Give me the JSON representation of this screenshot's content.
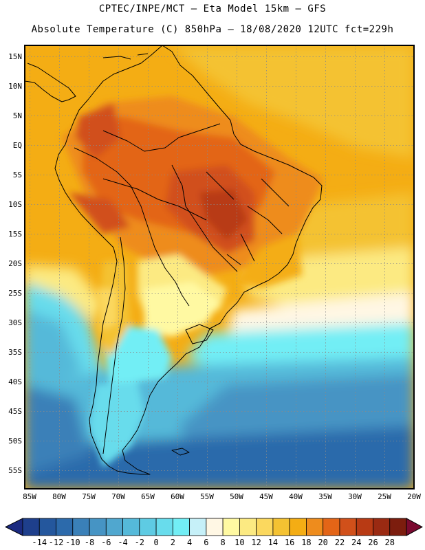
{
  "titles": {
    "line1": "CPTEC/INPE/MCT –  Eta Model 15km – GFS",
    "line2": "Absolute Temperature (C) 850hPa – 18/08/2020 12UTC fct=229h"
  },
  "map": {
    "variable": "Absolute Temperature (C)",
    "level": "850hPa",
    "model": "Eta Model 15km",
    "driver": "GFS",
    "date": "18/08/2020",
    "cycle": "12UTC",
    "forecast": "229h",
    "lon_range": [
      -85,
      -20
    ],
    "lat_range": [
      -58,
      16
    ],
    "lat_labels": [
      "15N",
      "10N",
      "5N",
      "EQ",
      "5S",
      "10S",
      "15S",
      "20S",
      "25S",
      "30S",
      "35S",
      "40S",
      "45S",
      "50S",
      "55S"
    ],
    "lon_labels": [
      "85W",
      "80W",
      "75W",
      "70W",
      "65W",
      "60W",
      "55W",
      "50W",
      "45W",
      "40W",
      "35W",
      "30W",
      "25W",
      "20W"
    ],
    "regions": [
      {
        "name": "ocean-warm-north",
        "temp": "16"
      },
      {
        "name": "ocean-north-tropical",
        "temp": "18"
      },
      {
        "name": "ocean-mid-atlantic",
        "temp": "14"
      },
      {
        "name": "ocean-warm-strip",
        "temp": "8"
      },
      {
        "name": "ocean-cool-band",
        "temp": "4"
      },
      {
        "name": "ocean-south",
        "temp": "2"
      },
      {
        "name": "ocean-far-south",
        "temp": "-6"
      },
      {
        "name": "pacific-cold-tongue",
        "temp": "0"
      },
      {
        "name": "land-andes-west",
        "temp": "18"
      },
      {
        "name": "land-amazon",
        "temp": "22"
      },
      {
        "name": "land-central-brazil-hot",
        "temp": "24"
      },
      {
        "name": "land-southeast-brazil",
        "temp": "16"
      },
      {
        "name": "land-chaco-pampas",
        "temp": "10"
      },
      {
        "name": "land-patagonia",
        "temp": "0"
      }
    ]
  },
  "colorbar": {
    "labels": [
      "-14",
      "-12",
      "-10",
      "-8",
      "-6",
      "-4",
      "-2",
      "0",
      "2",
      "4",
      "6",
      "8",
      "10",
      "12",
      "14",
      "16",
      "18",
      "20",
      "22",
      "24",
      "26",
      "28"
    ],
    "colors": [
      "#1e3f8c",
      "#24579d",
      "#2c6aab",
      "#3a80b8",
      "#4694c4",
      "#50a7cf",
      "#55b9d9",
      "#5ecbe3",
      "#68dcec",
      "#72eef5",
      "#c6f0f8",
      "#fff7e4",
      "#fff9a2",
      "#fcea82",
      "#fbd85e",
      "#f4c232",
      "#f4ad14",
      "#ee8c1d",
      "#e36517",
      "#d1501a",
      "#b83a14",
      "#9a2a12",
      "#7c1d0e"
    ],
    "under_color": "#1b2a80",
    "over_color": "#7a0a30"
  }
}
